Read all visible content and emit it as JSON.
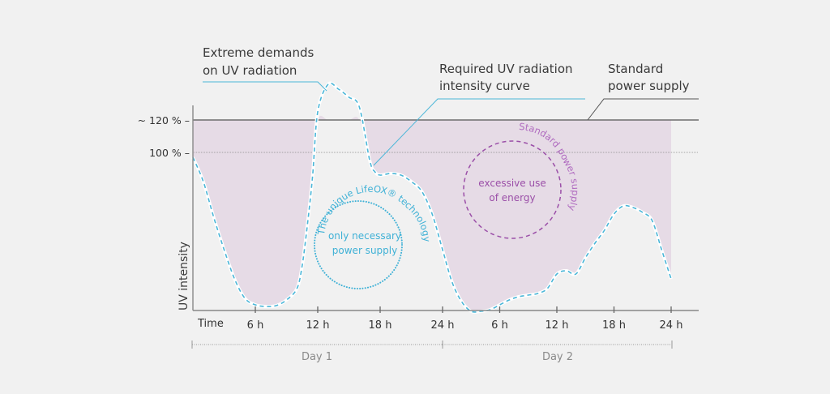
{
  "chart_data": {
    "type": "area",
    "title": "",
    "xlabel": "Time",
    "ylabel": "UV intensity",
    "x_ticks": [
      "6 h",
      "12 h",
      "18 h",
      "24 h",
      "6 h",
      "12 h",
      "18 h",
      "24 h"
    ],
    "x_hours": [
      6,
      12,
      18,
      24,
      30,
      36,
      42,
      48
    ],
    "xlim": [
      0,
      50
    ],
    "y_ticks": [
      {
        "label": "~ 120 % –",
        "value": 120
      },
      {
        "label": "100 % –",
        "value": 100
      }
    ],
    "ylim": [
      -20,
      130
    ],
    "days": [
      {
        "label": "Day 1",
        "from": 0,
        "to": 24
      },
      {
        "label": "Day 2",
        "from": 24,
        "to": 48
      }
    ],
    "series": [
      {
        "name": "Required UV radiation intensity curve",
        "style": "dashed",
        "color": "#4ab6d8",
        "x": [
          0,
          1,
          2,
          3,
          4,
          5,
          6,
          7,
          8,
          9,
          10,
          10.5,
          11,
          11.5,
          12,
          13,
          14,
          15,
          16,
          17,
          17.5,
          18,
          19,
          20,
          21,
          22,
          23,
          24,
          25,
          26,
          27,
          28,
          29,
          30,
          31,
          32,
          33,
          34,
          35,
          36,
          37,
          38,
          39,
          40,
          41,
          42,
          43,
          44,
          45,
          46,
          47,
          48
        ],
        "values": [
          97,
          82,
          60,
          40,
          22,
          10,
          6,
          5,
          5.5,
          9,
          16,
          30,
          55,
          85,
          125,
          142,
          139,
          134,
          128,
          95,
          88,
          86,
          87,
          86,
          82,
          76,
          62,
          40,
          20,
          8,
          2,
          2,
          3,
          6,
          9,
          11,
          12,
          13,
          16,
          25,
          27,
          25,
          35,
          44,
          52,
          62,
          67,
          66,
          63,
          58,
          40,
          22
        ]
      },
      {
        "name": "Standard power supply",
        "style": "solid",
        "color": "#6e6e6e",
        "value": 120
      }
    ],
    "fill": {
      "name": "excessive energy area",
      "color": "#e6dbe6"
    },
    "annotations": [
      {
        "text": [
          "Extreme demands",
          "on UV radiation"
        ]
      },
      {
        "text": [
          "Required UV radiation",
          "intensity curve"
        ]
      },
      {
        "text": [
          "Standard",
          "power supply"
        ]
      }
    ],
    "circles": [
      {
        "name": "lifeox",
        "inner_text": [
          "only necessary",
          "power supply"
        ],
        "arc_text": "The unique LifeOX® technology",
        "color": "#3fb1d6",
        "style": "dotted"
      },
      {
        "name": "standard",
        "inner_text": [
          "excessive use",
          "of energy"
        ],
        "arc_text": "Standard power supply",
        "color": "#9b4fa8",
        "style": "dashed"
      }
    ]
  }
}
